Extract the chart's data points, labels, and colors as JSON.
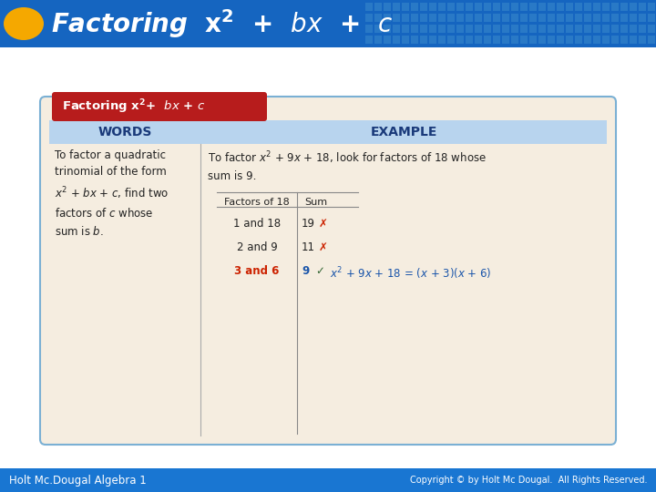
{
  "title_bg": "#1565c0",
  "title_fg": "#ffffff",
  "oval_color": "#f5a800",
  "footer_bg": "#1976d2",
  "footer_left": "Holt Mc.Dougal Algebra 1",
  "footer_right": "Copyright © by Holt Mc Dougal.  All Rights Reserved.",
  "card_bg": "#f5ede0",
  "card_border": "#7ab0d4",
  "red_label_bg": "#b71c1c",
  "red_label_fg": "#ffffff",
  "header_bg": "#b8d4ee",
  "header_fg": "#1a3a7a",
  "words_header": "WORDS",
  "example_header": "EXAMPLE",
  "red_color": "#cc2200",
  "blue_color": "#1a55aa",
  "mark_red": "#cc2200",
  "mark_green": "#336633",
  "tile_color": "#3a8acc",
  "divider_color": "#aaaaaa",
  "body_color": "#222222"
}
